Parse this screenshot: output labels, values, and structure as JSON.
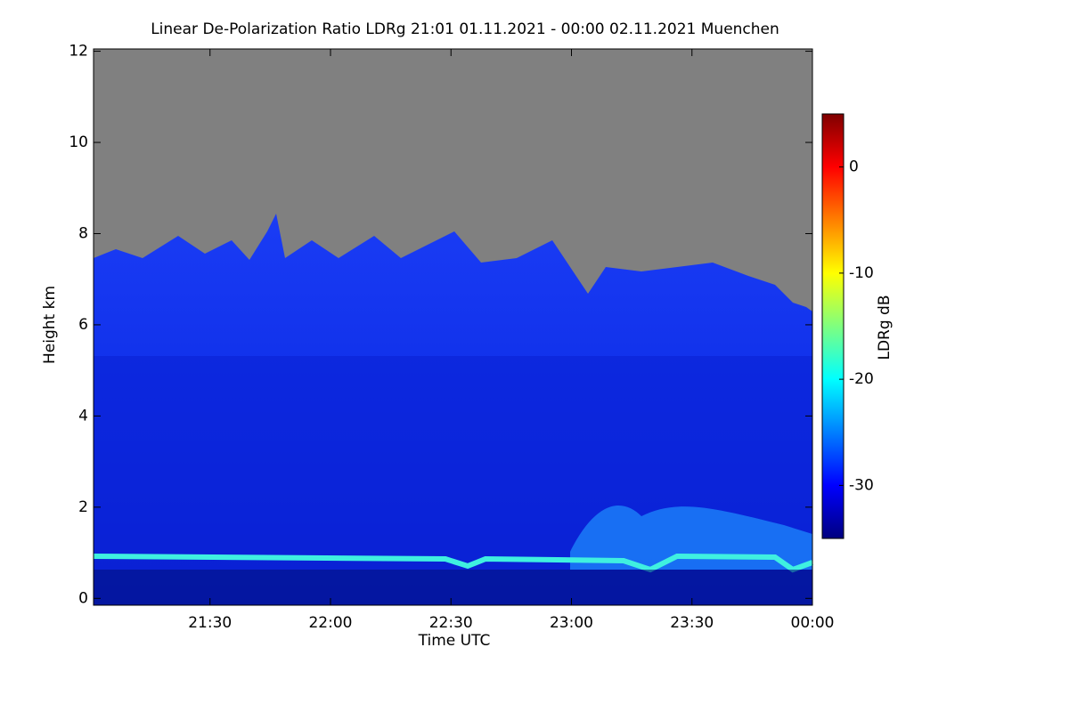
{
  "chart_data": {
    "type": "heatmap",
    "title": "Linear De-Polarization Ratio LDRg   21:01 01.11.2021 - 00:00 02.11.2021 Muenchen",
    "x_label": "Time UTC",
    "y_label": "Height km",
    "xlim": [
      1,
      180
    ],
    "xticks": [
      {
        "value": 30,
        "label": "21:30"
      },
      {
        "value": 60,
        "label": "22:00"
      },
      {
        "value": 90,
        "label": "22:30"
      },
      {
        "value": 120,
        "label": "23:00"
      },
      {
        "value": 150,
        "label": "23:30"
      },
      {
        "value": 180,
        "label": "00:00"
      }
    ],
    "ylim": [
      -0.15,
      12.05
    ],
    "yticks": [
      0,
      2,
      4,
      6,
      8,
      10,
      12
    ],
    "colorbar": {
      "label": "LDRg dB",
      "lim": [
        -35,
        5
      ],
      "ticks": [
        0,
        -10,
        -20,
        -30
      ],
      "colors": [
        "#00007f",
        "#0000ff",
        "#007fff",
        "#00ffff",
        "#7fff7f",
        "#ffff00",
        "#ff7f00",
        "#ff0000",
        "#7f0000"
      ]
    }
  }
}
